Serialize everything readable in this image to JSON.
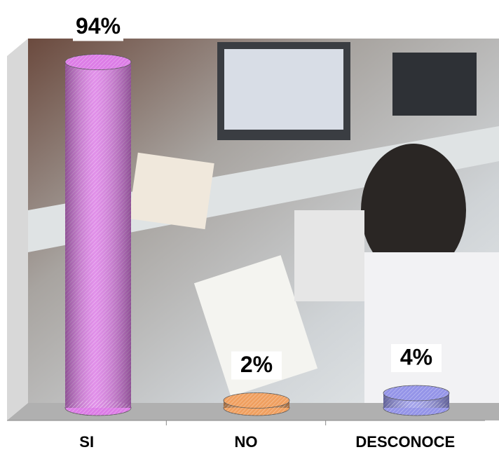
{
  "chart_data": {
    "type": "bar3d",
    "categories": [
      "SI",
      "NO",
      "DESCONOCE"
    ],
    "values": [
      94,
      2,
      4
    ],
    "value_labels": [
      "94%",
      "2%",
      "4%"
    ],
    "colors": [
      "#dc7ce6",
      "#f0a060",
      "#9494e8"
    ]
  }
}
